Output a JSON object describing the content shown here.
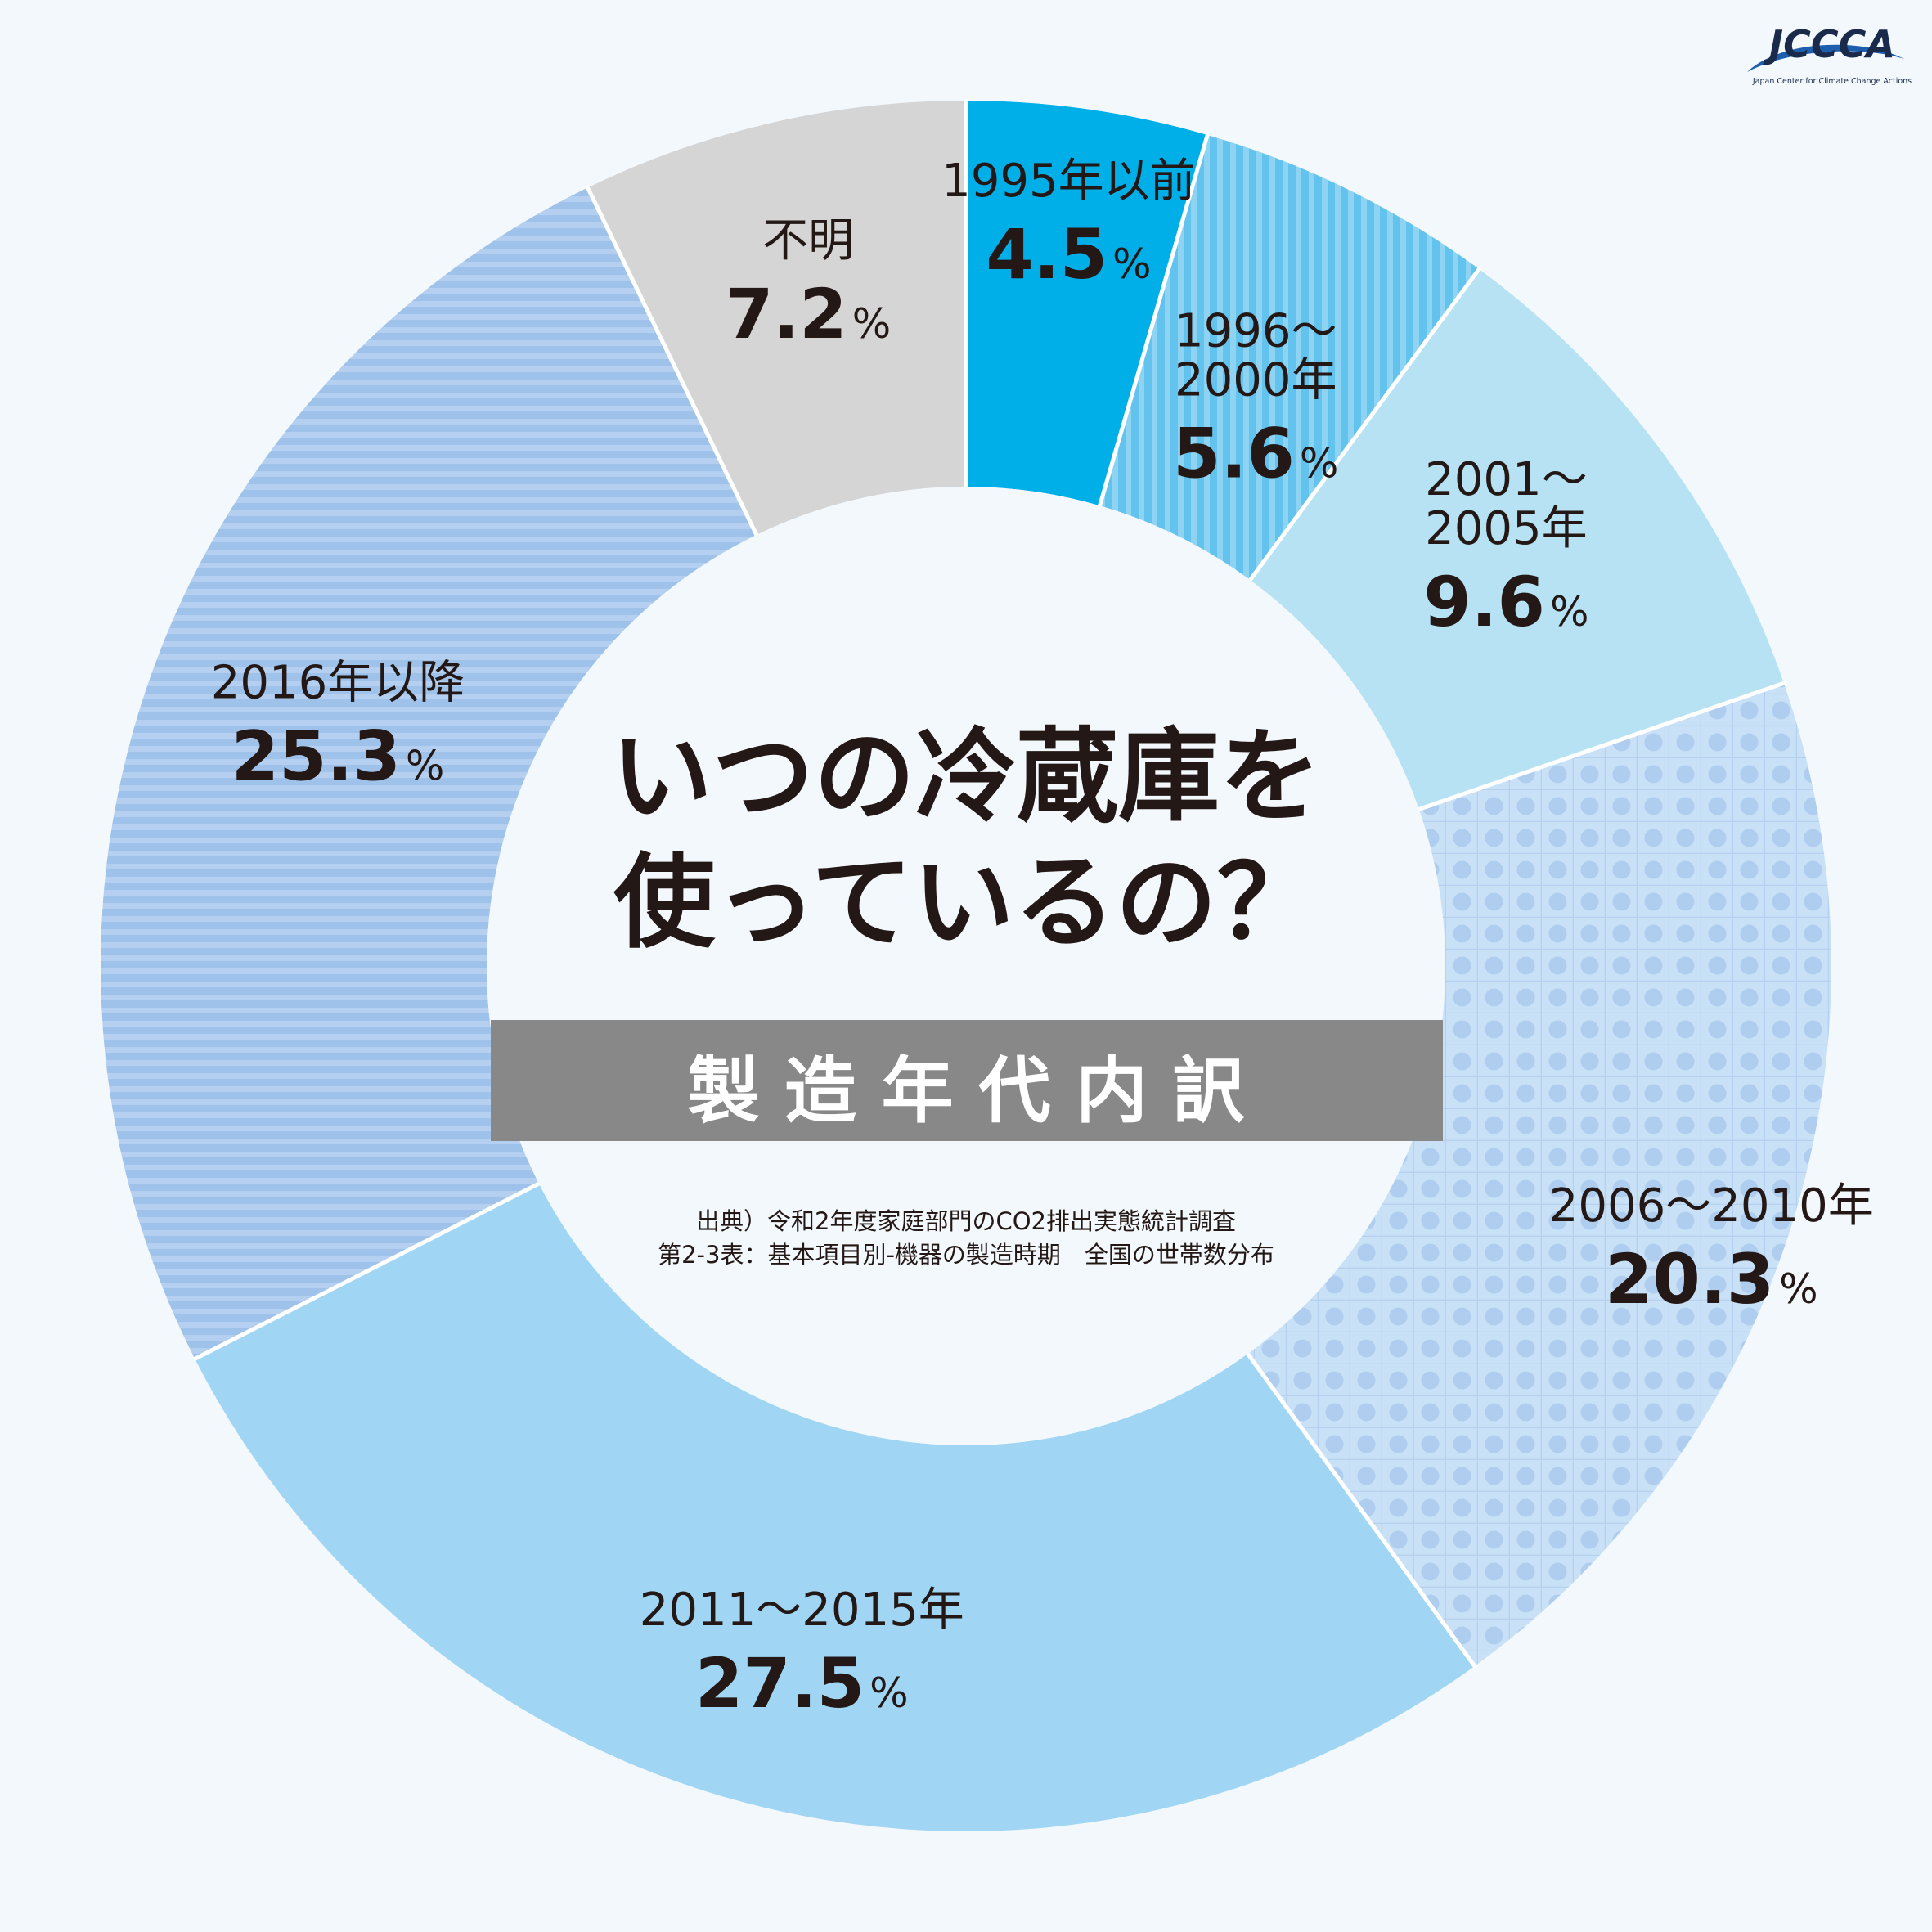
{
  "logo": {
    "name": "JCCCA",
    "tagline": "Japan Center for Climate Change Actions"
  },
  "center": {
    "title_line1": "いつの冷蔵庫を",
    "title_line2": "使っているの？",
    "band_label": "製 造 年 代 内 訳",
    "source_line1": "出典）令和2年度家庭部門のCO2排出実態統計調査",
    "source_line2": "第2-3表：基本項目別-機器の製造時期　全国の世帯数分布"
  },
  "chart_data": {
    "type": "pie",
    "donut": true,
    "unit": "%",
    "series": [
      {
        "name": "1995年以前",
        "label_lines": [
          "1995年以前"
        ],
        "value": 4.5,
        "value_text": "4.5",
        "color": "#00aee8",
        "pattern": "solid"
      },
      {
        "name": "1996～2000年",
        "label_lines": [
          "1996～",
          "2000年"
        ],
        "value": 5.6,
        "value_text": "5.6",
        "color": "#62c3ee",
        "pattern": "vertical-stripes"
      },
      {
        "name": "2001～2005年",
        "label_lines": [
          "2001～",
          "2005年"
        ],
        "value": 9.6,
        "value_text": "9.6",
        "color": "#b6e2f4",
        "pattern": "solid"
      },
      {
        "name": "2006～2010年",
        "label_lines": [
          "2006～2010年"
        ],
        "value": 20.3,
        "value_text": "20.3",
        "color": "#c2ddf4",
        "pattern": "dots"
      },
      {
        "name": "2011～2015年",
        "label_lines": [
          "2011～2015年"
        ],
        "value": 27.5,
        "value_text": "27.5",
        "color": "#a0d6f4",
        "pattern": "solid"
      },
      {
        "name": "2016年以降",
        "label_lines": [
          "2016年以降"
        ],
        "value": 25.3,
        "value_text": "25.3",
        "color": "#9fc2ea",
        "pattern": "horizontal-stripes"
      },
      {
        "name": "不明",
        "label_lines": [
          "不明"
        ],
        "value": 7.2,
        "value_text": "7.2",
        "color": "#d5d5d5",
        "pattern": "solid"
      }
    ]
  }
}
